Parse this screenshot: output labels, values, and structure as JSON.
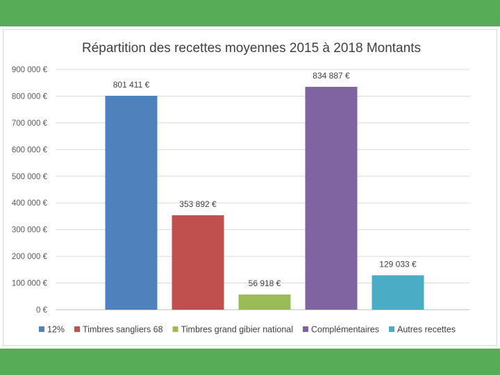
{
  "chart_data": {
    "type": "bar",
    "title": "Répartition des recettes moyennes 2015 à 2018 Montants",
    "xlabel": "",
    "ylabel": "",
    "ylim": [
      0,
      900000
    ],
    "grid": true,
    "legend_position": "bottom",
    "y_ticks": [
      "0 €",
      "100 000 €",
      "200 000 €",
      "300 000 €",
      "400 000 €",
      "500 000 €",
      "600 000 €",
      "700 000 €",
      "800 000 €",
      "900 000 €"
    ],
    "series": [
      {
        "name": "12%",
        "value": 801411,
        "label": "801 411 €",
        "color": "#4f81bd"
      },
      {
        "name": "Timbres sangliers 68",
        "value": 353892,
        "label": "353 892 €",
        "color": "#c0504d"
      },
      {
        "name": "Timbres grand gibier national",
        "value": 56918,
        "label": "56 918 €",
        "color": "#9bbb59"
      },
      {
        "name": "Complémentaires",
        "value": 834887,
        "label": "834 887 €",
        "color": "#8064a2"
      },
      {
        "name": "Autres recettes",
        "value": 129033,
        "label": "129 033 €",
        "color": "#4bacc6"
      }
    ]
  }
}
